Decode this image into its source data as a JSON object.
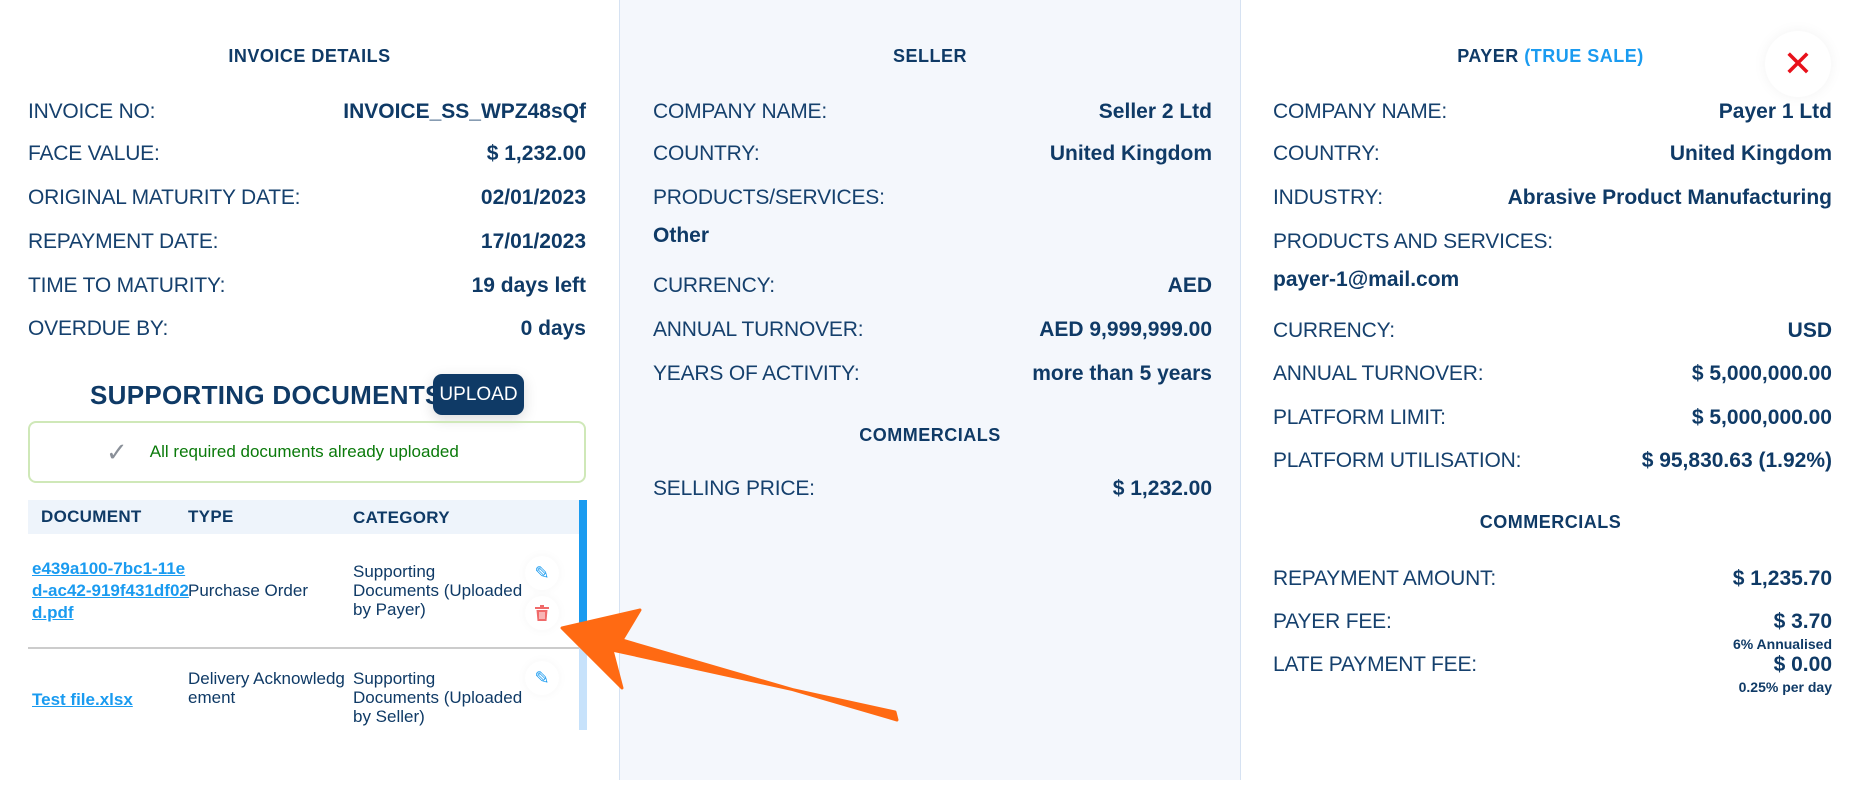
{
  "invoice": {
    "title": "INVOICE DETAILS",
    "rows": [
      {
        "label": "INVOICE NO:",
        "value": "INVOICE_SS_WPZ48sQf"
      },
      {
        "label": "FACE VALUE:",
        "value": "$ 1,232.00"
      },
      {
        "label": "ORIGINAL MATURITY DATE:",
        "value": "02/01/2023"
      },
      {
        "label": "REPAYMENT DATE:",
        "value": "17/01/2023"
      },
      {
        "label": "TIME TO MATURITY:",
        "value": "19 days left"
      },
      {
        "label": "OVERDUE BY:",
        "value": "0 days"
      }
    ]
  },
  "documents": {
    "title": "SUPPORTING DOCUMENTS",
    "upload_label": "UPLOAD",
    "alert": "All required documents already uploaded",
    "columns": [
      "DOCUMENT",
      "TYPE",
      "CATEGORY"
    ],
    "rows": [
      {
        "document": "e439a100-7bc1-11ed-ac42-919f431df02d.pdf",
        "type": "Purchase Order",
        "category": "Supporting Documents (Uploaded by Payer)"
      },
      {
        "document": "Test file.xlsx",
        "type": "Delivery Acknowledgement",
        "category": "Supporting Documents (Uploaded by Seller)"
      }
    ]
  },
  "seller": {
    "title": "SELLER",
    "rows": [
      {
        "label": "COMPANY NAME:",
        "value": "Seller 2 Ltd"
      },
      {
        "label": "COUNTRY:",
        "value": "United Kingdom"
      },
      {
        "label": "PRODUCTS/SERVICES:",
        "value": "Other"
      },
      {
        "label": "CURRENCY:",
        "value": "AED"
      },
      {
        "label": "ANNUAL TURNOVER:",
        "value": "AED 9,999,999.00"
      },
      {
        "label": "YEARS OF ACTIVITY:",
        "value": "more than 5 years"
      }
    ],
    "commercials_title": "COMMERCIALS",
    "commercials": [
      {
        "label": "SELLING PRICE:",
        "value": "$ 1,232.00"
      }
    ]
  },
  "payer": {
    "title": "PAYER",
    "title_tag": "(TRUE SALE)",
    "rows": [
      {
        "label": "COMPANY NAME:",
        "value": "Payer 1 Ltd"
      },
      {
        "label": "COUNTRY:",
        "value": "United Kingdom"
      },
      {
        "label": "INDUSTRY:",
        "value": "Abrasive Product Manufacturing"
      },
      {
        "label": "PRODUCTS AND SERVICES:",
        "value": "payer-1@mail.com"
      },
      {
        "label": "CURRENCY:",
        "value": "USD"
      },
      {
        "label": "ANNUAL TURNOVER:",
        "value": "$ 5,000,000.00"
      },
      {
        "label": "PLATFORM LIMIT:",
        "value": "$ 5,000,000.00"
      },
      {
        "label": "PLATFORM UTILISATION:",
        "value": "$ 95,830.63 (1.92%)"
      }
    ],
    "commercials_title": "COMMERCIALS",
    "commercials": [
      {
        "label": "REPAYMENT AMOUNT:",
        "value": "$ 1,235.70"
      },
      {
        "label": "PAYER FEE:",
        "value": "$ 3.70",
        "note": "6% Annualised"
      },
      {
        "label": "LATE PAYMENT FEE:",
        "value": "$ 0.00",
        "note": "0.25% per day"
      }
    ]
  },
  "close_icon": "close-icon",
  "colors": {
    "navy": "#0f3a66",
    "accent": "#1a9bf0",
    "success": "#0a7a0a",
    "danger": "#e8111b",
    "arrow": "#ff6a13"
  }
}
